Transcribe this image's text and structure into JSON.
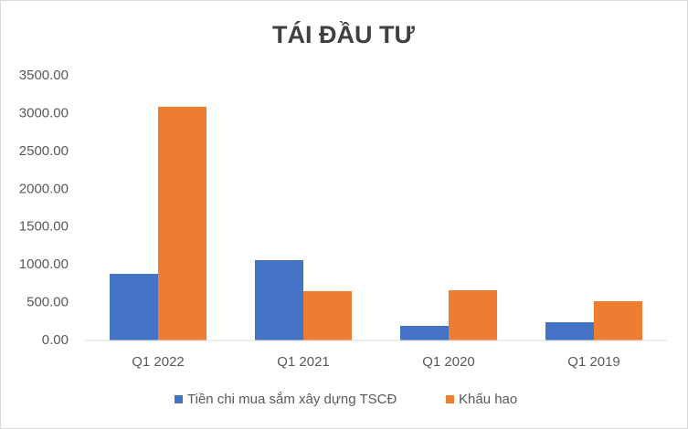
{
  "chart_data": {
    "type": "bar",
    "title": "TÁI ĐẦU TƯ",
    "categories": [
      "Q1 2022",
      "Q1 2021",
      "Q1 2020",
      "Q1 2019"
    ],
    "series": [
      {
        "name": "Tiền chi mua sắm xây dựng TSCĐ",
        "color": "#4472c4",
        "values": [
          881,
          1062,
          193,
          241
        ]
      },
      {
        "name": "Khấu hao",
        "color": "#ed7d31",
        "values": [
          3090,
          652,
          664,
          519
        ]
      }
    ],
    "ylim": [
      0,
      3500
    ],
    "yticks": [
      {
        "value": 0,
        "label": "0.00"
      },
      {
        "value": 500,
        "label": "500.00"
      },
      {
        "value": 1000,
        "label": "1000.00"
      },
      {
        "value": 1500,
        "label": "1500.00"
      },
      {
        "value": 2000,
        "label": "2000.00"
      },
      {
        "value": 2500,
        "label": "2500.00"
      },
      {
        "value": 3000,
        "label": "3000.00"
      },
      {
        "value": 3500,
        "label": "3500.00"
      }
    ],
    "grid": false,
    "legend": "bottom"
  }
}
